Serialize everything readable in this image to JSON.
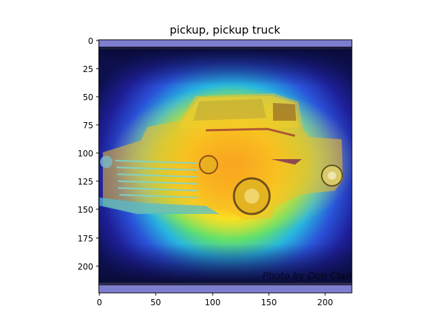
{
  "figure": {
    "title": "pickup, pickup truck",
    "x_ticks": [
      "0",
      "50",
      "100",
      "150",
      "200"
    ],
    "y_ticks": [
      "0",
      "25",
      "50",
      "75",
      "100",
      "125",
      "150",
      "175",
      "200"
    ],
    "watermark": "Photo by Don Clark"
  },
  "colors": {
    "frame": "#000000",
    "background": "#ffffff",
    "bar": "#7e7ecf"
  }
}
